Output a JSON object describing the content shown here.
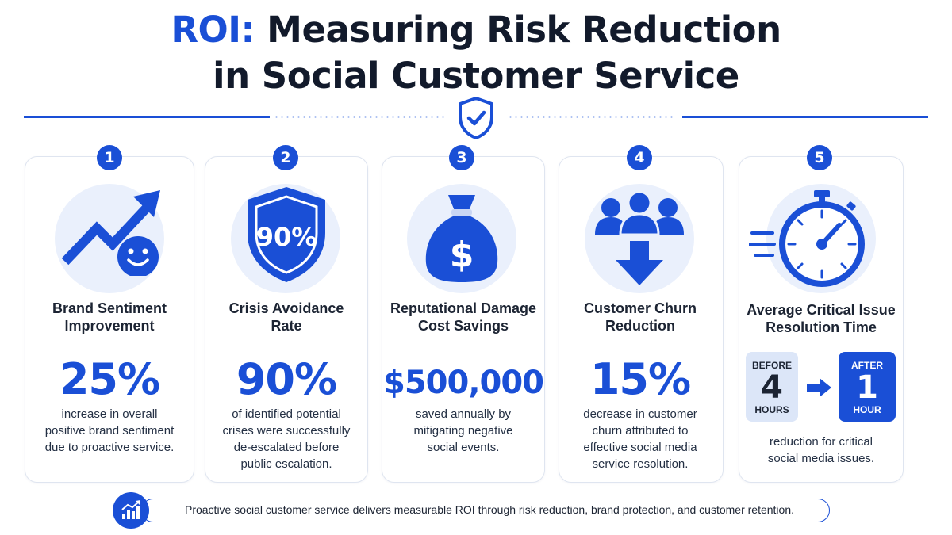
{
  "title": {
    "accent": "ROI:",
    "line1_rest": " Measuring Risk Reduction",
    "line2": "in Social Customer Service"
  },
  "colors": {
    "accent": "#1a4fd6",
    "light": "#eaf0fc",
    "text": "#1c2433"
  },
  "cards": [
    {
      "number": "1",
      "icon": "trend-up-smile-icon",
      "label_l1": "Brand Sentiment",
      "label_l2": "Improvement",
      "stat": "25%",
      "desc_l1": "increase in overall",
      "desc_l2": "positive brand sentiment",
      "desc_l3": "due to proactive service."
    },
    {
      "number": "2",
      "icon": "shield-icon",
      "shield_text": "90%",
      "label_l1": "Crisis Avoidance",
      "label_l2": "Rate",
      "stat": "90%",
      "desc_l1": "of identified potential",
      "desc_l2": "crises were successfully",
      "desc_l3": "de-escalated before",
      "desc_l4": "public escalation."
    },
    {
      "number": "3",
      "icon": "money-bag-icon",
      "bag_symbol": "$",
      "label_l1": "Reputational Damage",
      "label_l2": "Cost Savings",
      "stat": "$500,000",
      "desc_l1": "saved annually by",
      "desc_l2": "mitigating negative",
      "desc_l3": "social events."
    },
    {
      "number": "4",
      "icon": "people-down-arrow-icon",
      "label_l1": "Customer Churn",
      "label_l2": "Reduction",
      "stat": "15%",
      "desc_l1": "decrease in customer",
      "desc_l2": "churn attributed to",
      "desc_l3": "effective social media",
      "desc_l4": "service resolution."
    },
    {
      "number": "5",
      "icon": "stopwatch-icon",
      "label_l1": "Average Critical Issue",
      "label_l2": "Resolution Time",
      "before": {
        "top": "BEFORE",
        "value": "4",
        "unit": "HOURS"
      },
      "after": {
        "top": "AFTER",
        "value": "1",
        "unit": "HOUR"
      },
      "desc_l1": "reduction for critical",
      "desc_l2": "social media issues."
    }
  ],
  "footer": {
    "icon": "bar-chart-icon",
    "text": "Proactive social customer service delivers measurable ROI through risk reduction, brand protection, and customer retention."
  }
}
